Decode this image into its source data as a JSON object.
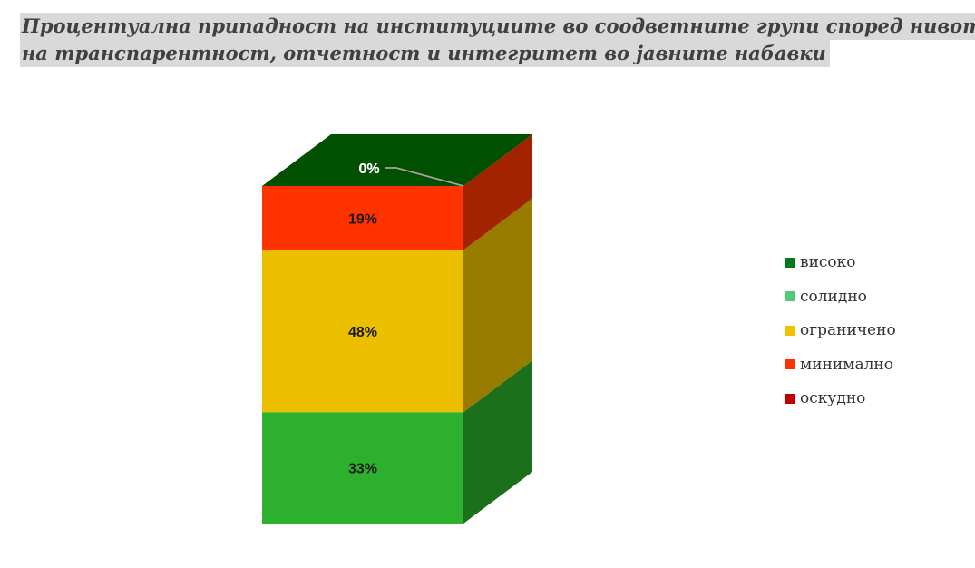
{
  "title": {
    "line1": "Процентуална припадност на институциите во соодветните групи според нивото",
    "line2": "на транспарентност, отчетност и интегритет во јавните набавки"
  },
  "chart_data": {
    "type": "bar",
    "variant": "3d-stacked-100",
    "categories": [
      ""
    ],
    "series": [
      {
        "name": "високо",
        "values": [
          0
        ],
        "label": "0%",
        "color": "#007a1a",
        "front_color": "#005000",
        "side_color": "#1c701c"
      },
      {
        "name": "солидно",
        "values": [
          33
        ],
        "label": "33%",
        "color": "#4fc97a",
        "front_color": "#2db02d",
        "side_color": "#1c701c"
      },
      {
        "name": "ограничено",
        "values": [
          48
        ],
        "label": "48%",
        "color": "#f2c200",
        "front_color": "#ebbe00",
        "side_color": "#977c00"
      },
      {
        "name": "минимално",
        "values": [
          19
        ],
        "label": "19%",
        "color": "#ff3300",
        "front_color": "#ff3300",
        "side_color": "#a22300"
      },
      {
        "name": "оскудно",
        "values": [
          0
        ],
        "label": "0%",
        "color": "#c00000",
        "front_color": "#c00000",
        "side_color": "#8b0000"
      }
    ],
    "ylim": [
      0,
      100
    ],
    "legend": "right"
  }
}
